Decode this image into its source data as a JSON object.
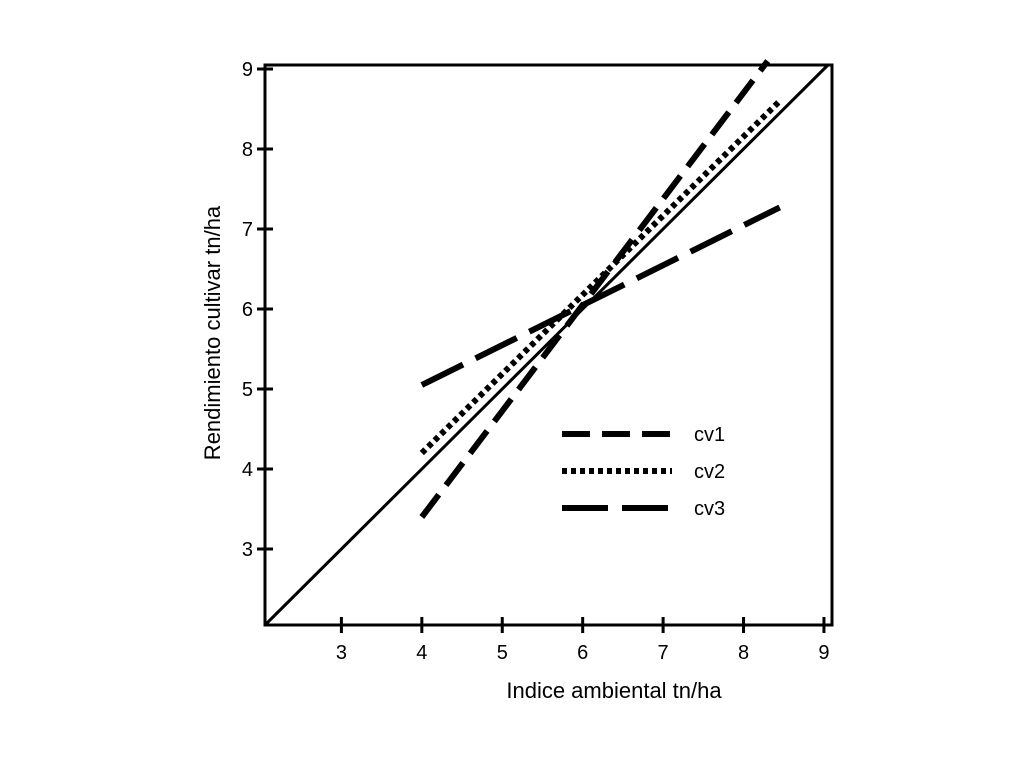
{
  "chart_data": {
    "type": "line",
    "xlabel": "Indice ambiental tn/ha",
    "ylabel": "Rendimiento cultivar tn/ha",
    "xlim": [
      2.05,
      9.1
    ],
    "ylim": [
      2.05,
      9.05
    ],
    "x_ticks": [
      3,
      4,
      5,
      6,
      7,
      8,
      9
    ],
    "y_ticks": [
      3,
      4,
      5,
      6,
      7,
      8,
      9
    ],
    "reference_line": {
      "x": [
        2.05,
        9.05
      ],
      "y": [
        2.05,
        9.05
      ],
      "style": "solid"
    },
    "series": [
      {
        "name": "cv1",
        "style": "dashed",
        "x": [
          4.0,
          8.3
        ],
        "y": [
          3.4,
          9.1
        ]
      },
      {
        "name": "cv2",
        "style": "dotted",
        "x": [
          4.0,
          8.45
        ],
        "y": [
          4.2,
          8.6
        ]
      },
      {
        "name": "cv3",
        "style": "long-dashed",
        "x": [
          4.0,
          8.45
        ],
        "y": [
          5.05,
          7.27
        ]
      }
    ],
    "legend_position": "bottom-right",
    "grid": false,
    "colors": {
      "line": "#000000",
      "background": "#ffffff"
    }
  }
}
